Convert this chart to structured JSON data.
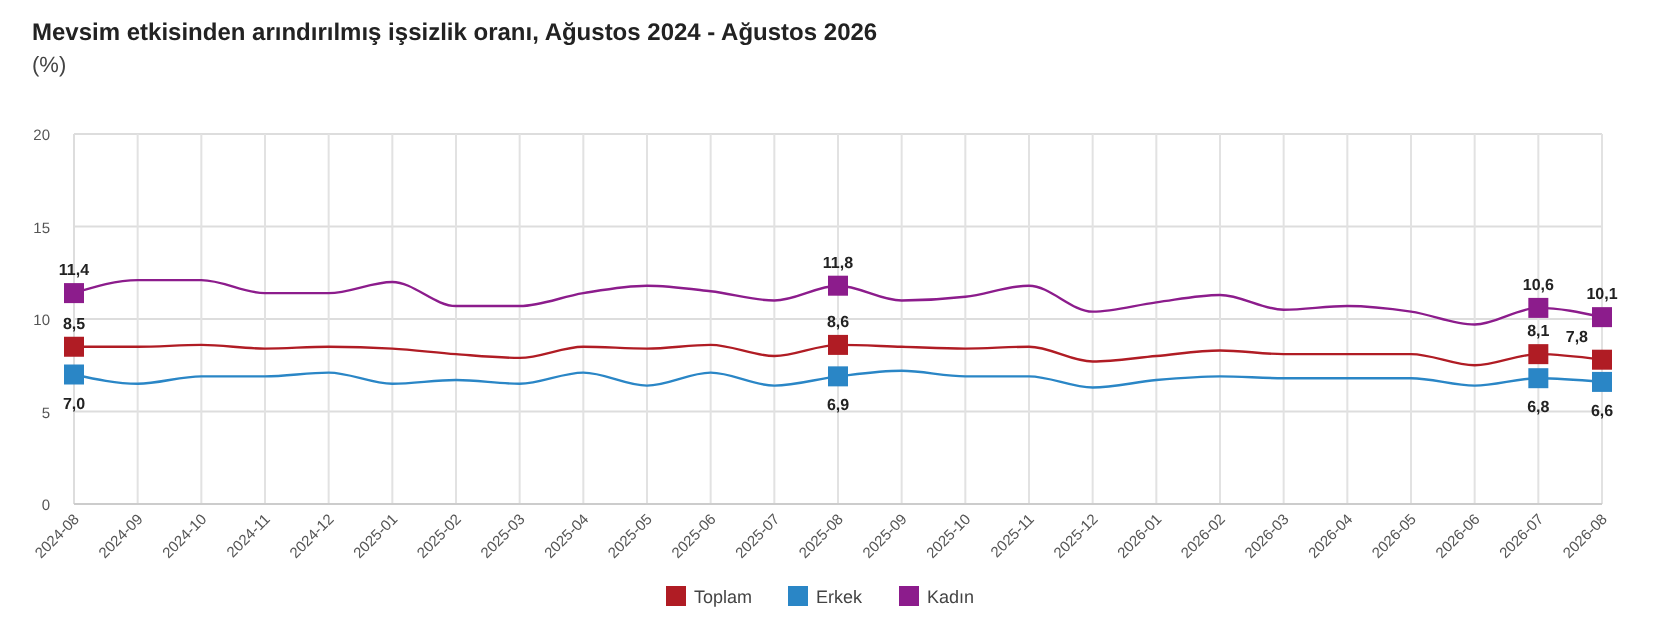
{
  "chart_data": {
    "type": "line",
    "title": "Mevsim etkisinden arındırılmış işsizlik oranı, Ağustos 2024 - Ağustos 2026",
    "subtitle": "(%)",
    "categories": [
      "2024-08",
      "2024-09",
      "2024-10",
      "2024-11",
      "2024-12",
      "2025-01",
      "2025-02",
      "2025-03",
      "2025-04",
      "2025-05",
      "2025-06",
      "2025-07",
      "2025-08",
      "2025-09",
      "2025-10",
      "2025-11",
      "2025-12",
      "2026-01",
      "2026-02",
      "2026-03",
      "2026-04",
      "2026-05",
      "2026-06",
      "2026-07",
      "2026-08"
    ],
    "series": [
      {
        "name": "Toplam",
        "color": "#b01c24",
        "values": [
          8.5,
          8.5,
          8.6,
          8.4,
          8.5,
          8.4,
          8.1,
          7.9,
          8.5,
          8.4,
          8.6,
          8.0,
          8.6,
          8.5,
          8.4,
          8.5,
          7.7,
          8.0,
          8.3,
          8.1,
          8.1,
          8.1,
          7.5,
          8.1,
          7.8
        ],
        "value_labels": [
          "8,5",
          null,
          null,
          null,
          null,
          null,
          null,
          null,
          null,
          null,
          null,
          null,
          "8,6",
          null,
          null,
          null,
          null,
          null,
          null,
          null,
          null,
          null,
          null,
          "8,1",
          "7,8"
        ]
      },
      {
        "name": "Erkek",
        "color": "#2a86c6",
        "values": [
          7.0,
          6.5,
          6.9,
          6.9,
          7.1,
          6.5,
          6.7,
          6.5,
          7.1,
          6.4,
          7.1,
          6.4,
          6.9,
          7.2,
          6.9,
          6.9,
          6.3,
          6.7,
          6.9,
          6.8,
          6.8,
          6.8,
          6.4,
          6.8,
          6.6
        ],
        "value_labels": [
          "7,0",
          null,
          null,
          null,
          null,
          null,
          null,
          null,
          null,
          null,
          null,
          null,
          "6,9",
          null,
          null,
          null,
          null,
          null,
          null,
          null,
          null,
          null,
          null,
          "6,8",
          "6,6"
        ]
      },
      {
        "name": "Kadın",
        "color": "#8c1c8c",
        "values": [
          11.4,
          12.1,
          12.1,
          11.4,
          11.4,
          12.0,
          10.7,
          10.7,
          11.4,
          11.8,
          11.5,
          11.0,
          11.8,
          11.0,
          11.2,
          11.8,
          10.4,
          10.9,
          11.3,
          10.5,
          10.7,
          10.4,
          9.7,
          10.6,
          10.1
        ],
        "value_labels": [
          "11,4",
          null,
          null,
          null,
          null,
          null,
          null,
          null,
          null,
          null,
          null,
          null,
          "11,8",
          null,
          null,
          null,
          null,
          null,
          null,
          null,
          null,
          null,
          null,
          "10,6",
          "10,1"
        ]
      }
    ],
    "ylim": [
      0,
      20
    ],
    "yticks": [
      0,
      5,
      10,
      15,
      20
    ],
    "grid": true,
    "legend": "bottom"
  }
}
